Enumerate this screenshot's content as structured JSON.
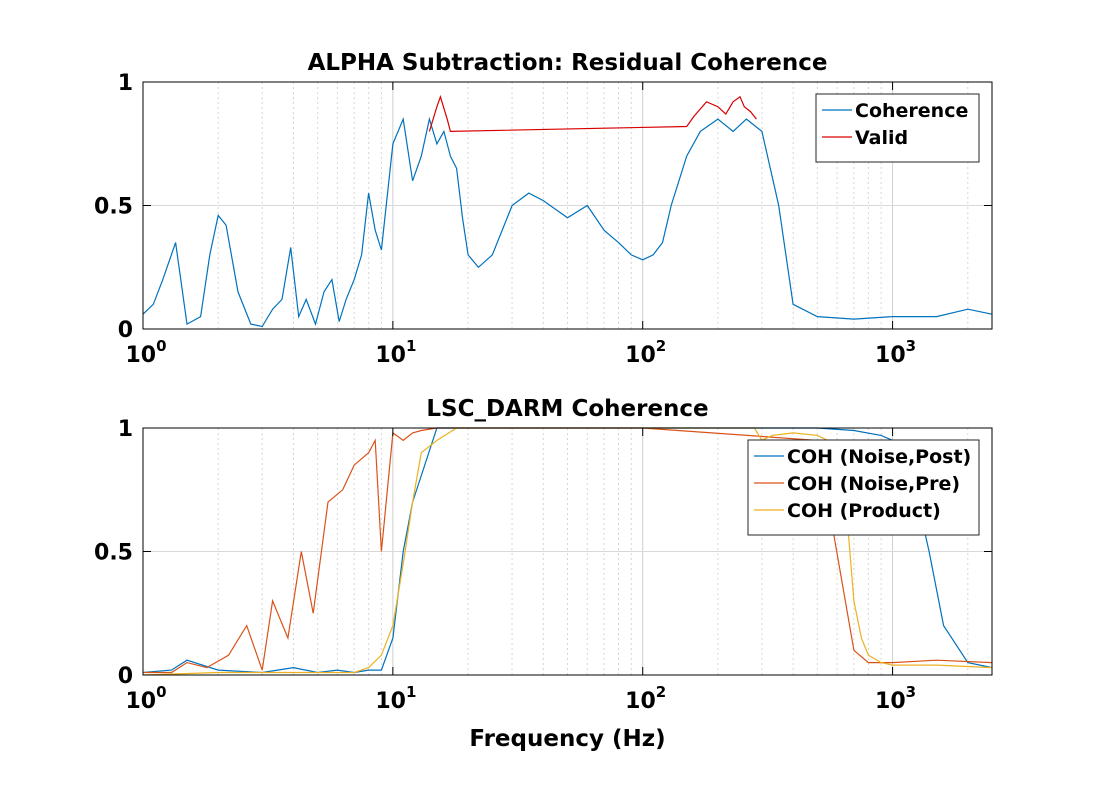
{
  "chart_data": [
    {
      "type": "line",
      "title": "ALPHA Subtraction: Residual Coherence",
      "xlabel": "",
      "ylabel": "",
      "xscale": "log",
      "xlim": [
        1,
        2500
      ],
      "ylim": [
        0,
        1
      ],
      "xticks": [
        {
          "base": "10",
          "exp": "0"
        },
        {
          "base": "10",
          "exp": "1"
        },
        {
          "base": "10",
          "exp": "2"
        },
        {
          "base": "10",
          "exp": "3"
        }
      ],
      "yticks": [
        "0",
        "0.5",
        "1"
      ],
      "grid": true,
      "legend": "top-right",
      "series": [
        {
          "name": "Coherence",
          "color": "#0072BD",
          "x": [
            1,
            1.1,
            1.2,
            1.35,
            1.5,
            1.7,
            1.85,
            2.0,
            2.15,
            2.4,
            2.7,
            3.0,
            3.3,
            3.6,
            3.9,
            4.2,
            4.5,
            4.9,
            5.3,
            5.7,
            6.1,
            6.5,
            7.0,
            7.5,
            8.0,
            8.5,
            9.0,
            10,
            11,
            12,
            13,
            14,
            15,
            16,
            17,
            18,
            19,
            20,
            22,
            25,
            30,
            35,
            40,
            50,
            60,
            70,
            80,
            90,
            100,
            110,
            120,
            130,
            150,
            170,
            200,
            230,
            260,
            300,
            350,
            400,
            500,
            700,
            1000,
            1500,
            2000,
            2500
          ],
          "y": [
            0.06,
            0.1,
            0.2,
            0.35,
            0.02,
            0.05,
            0.3,
            0.46,
            0.42,
            0.15,
            0.02,
            0.01,
            0.08,
            0.12,
            0.33,
            0.05,
            0.12,
            0.02,
            0.15,
            0.2,
            0.03,
            0.12,
            0.2,
            0.3,
            0.55,
            0.4,
            0.32,
            0.75,
            0.85,
            0.6,
            0.7,
            0.85,
            0.75,
            0.8,
            0.7,
            0.65,
            0.45,
            0.3,
            0.25,
            0.3,
            0.5,
            0.55,
            0.52,
            0.45,
            0.5,
            0.4,
            0.35,
            0.3,
            0.28,
            0.3,
            0.35,
            0.5,
            0.7,
            0.8,
            0.85,
            0.8,
            0.85,
            0.8,
            0.5,
            0.1,
            0.05,
            0.04,
            0.05,
            0.05,
            0.08,
            0.06
          ]
        },
        {
          "name": "Valid",
          "color": "#D90000",
          "x": [
            14,
            15,
            15.5,
            16.5,
            17,
            150,
            160,
            180,
            200,
            215,
            230,
            245,
            255,
            270,
            285
          ],
          "y": [
            0.8,
            0.9,
            0.94,
            0.85,
            0.8,
            0.82,
            0.86,
            0.92,
            0.9,
            0.87,
            0.92,
            0.94,
            0.9,
            0.88,
            0.85
          ]
        }
      ]
    },
    {
      "type": "line",
      "title": "LSC_DARM Coherence",
      "xlabel": "Frequency (Hz)",
      "ylabel": "",
      "xscale": "log",
      "xlim": [
        1,
        2500
      ],
      "ylim": [
        0,
        1
      ],
      "xticks": [
        {
          "base": "10",
          "exp": "0"
        },
        {
          "base": "10",
          "exp": "1"
        },
        {
          "base": "10",
          "exp": "2"
        },
        {
          "base": "10",
          "exp": "3"
        }
      ],
      "yticks": [
        "0",
        "0.5",
        "1"
      ],
      "grid": true,
      "legend": "top-right",
      "series": [
        {
          "name": "COH (Noise,Post)",
          "color": "#0072BD",
          "x": [
            1,
            1.3,
            1.5,
            2,
            3,
            4,
            5,
            6,
            7,
            8,
            9,
            10,
            11,
            12,
            15,
            20,
            50,
            100,
            200,
            300,
            500,
            700,
            900,
            1000,
            1100,
            1200,
            1400,
            1600,
            2000,
            2500
          ],
          "y": [
            0.01,
            0.02,
            0.06,
            0.02,
            0.01,
            0.03,
            0.01,
            0.02,
            0.01,
            0.02,
            0.02,
            0.15,
            0.5,
            0.7,
            1.0,
            1.0,
            1.0,
            1.0,
            1.0,
            1.0,
            1.0,
            0.99,
            0.97,
            0.95,
            0.9,
            0.8,
            0.5,
            0.2,
            0.05,
            0.03
          ]
        },
        {
          "name": "COH (Noise,Pre)",
          "color": "#D95319",
          "x": [
            1,
            1.3,
            1.5,
            1.8,
            2.2,
            2.6,
            3.0,
            3.3,
            3.8,
            4.3,
            4.8,
            5.5,
            6.3,
            7.0,
            8.0,
            8.5,
            9.0,
            10,
            11,
            12,
            13,
            15,
            20,
            100,
            500,
            700,
            800,
            1000,
            1500,
            2500
          ],
          "y": [
            0.01,
            0.01,
            0.05,
            0.03,
            0.08,
            0.2,
            0.02,
            0.3,
            0.15,
            0.5,
            0.25,
            0.7,
            0.75,
            0.85,
            0.9,
            0.95,
            0.5,
            0.98,
            0.95,
            0.98,
            0.99,
            1.0,
            1.0,
            1.0,
            0.95,
            0.1,
            0.05,
            0.05,
            0.06,
            0.05
          ]
        },
        {
          "name": "COH (Product)",
          "color": "#EDB120",
          "x": [
            1,
            2,
            4,
            7,
            8,
            9,
            10,
            11,
            12,
            13,
            15,
            18,
            20,
            50,
            100,
            200,
            280,
            300,
            330,
            400,
            500,
            550,
            600,
            650,
            700,
            750,
            800,
            900,
            1000,
            1500,
            2500
          ],
          "y": [
            0.0,
            0.01,
            0.01,
            0.01,
            0.03,
            0.08,
            0.2,
            0.45,
            0.7,
            0.9,
            0.95,
            1.0,
            1.0,
            1.0,
            1.0,
            1.0,
            1.0,
            0.95,
            0.97,
            0.98,
            0.97,
            0.95,
            0.9,
            0.7,
            0.3,
            0.15,
            0.08,
            0.05,
            0.04,
            0.04,
            0.03
          ]
        }
      ]
    }
  ]
}
